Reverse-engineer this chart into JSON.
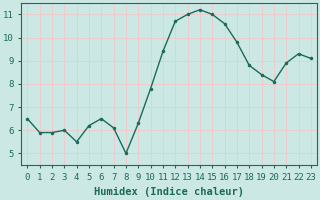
{
  "x": [
    0,
    1,
    2,
    3,
    4,
    5,
    6,
    7,
    8,
    9,
    10,
    11,
    12,
    13,
    14,
    15,
    16,
    17,
    18,
    19,
    20,
    21,
    22,
    23
  ],
  "y": [
    6.5,
    5.9,
    5.9,
    6.0,
    5.5,
    6.2,
    6.5,
    6.1,
    5.0,
    6.3,
    7.8,
    9.4,
    10.7,
    11.0,
    11.2,
    11.0,
    10.6,
    9.8,
    8.8,
    8.4,
    8.1,
    8.9,
    9.3,
    9.1
  ],
  "line_color": "#1a6b5a",
  "marker": ".",
  "marker_size": 3,
  "bg_color": "#cce8e4",
  "grid_color": "#f0c8c8",
  "xlabel": "Humidex (Indice chaleur)",
  "xlim": [
    -0.5,
    23.5
  ],
  "ylim": [
    4.5,
    11.5
  ],
  "yticks": [
    5,
    6,
    7,
    8,
    9,
    10,
    11
  ],
  "xticks": [
    0,
    1,
    2,
    3,
    4,
    5,
    6,
    7,
    8,
    9,
    10,
    11,
    12,
    13,
    14,
    15,
    16,
    17,
    18,
    19,
    20,
    21,
    22,
    23
  ],
  "xlabel_fontsize": 7.5,
  "tick_fontsize": 6.5,
  "line_width": 1.0
}
